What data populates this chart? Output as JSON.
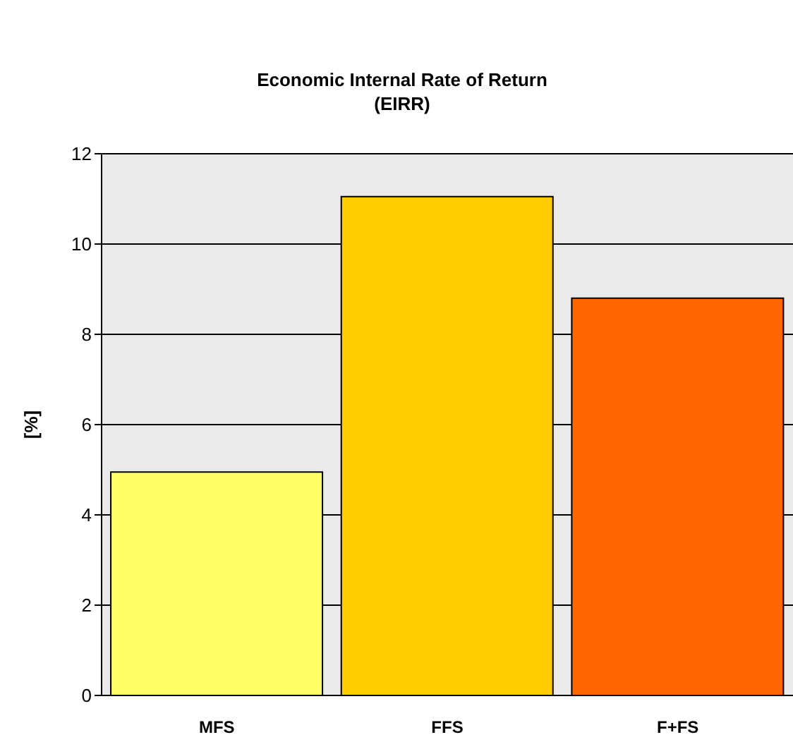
{
  "chart_data": {
    "type": "bar",
    "title": "Economic Internal Rate of Return\n(EIRR)",
    "ylabel": "[%]",
    "categories": [
      "MFS",
      "FFS",
      "F+FS"
    ],
    "values": [
      4.95,
      11.05,
      8.8
    ],
    "colors": [
      "#ffff66",
      "#ffcc00",
      "#ff6600"
    ],
    "ylim": [
      0,
      12
    ],
    "yticks": [
      0,
      2,
      4,
      6,
      8,
      10,
      12
    ],
    "grid": "y"
  }
}
